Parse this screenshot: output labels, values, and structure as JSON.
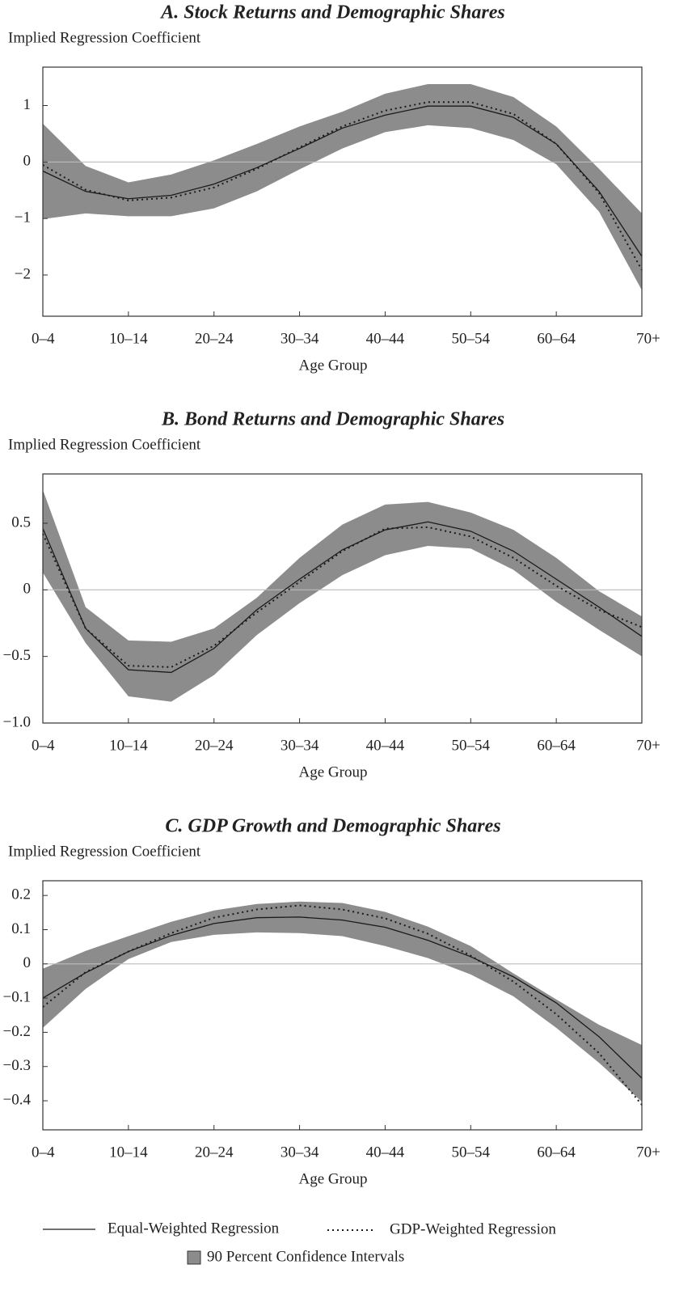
{
  "chart_data": [
    {
      "type": "line",
      "title": "A. Stock Returns and Demographic Shares",
      "y_label": "Implied Regression Coefficient",
      "x_label": "Age Group",
      "categories": [
        "0–4",
        null,
        "10–14",
        null,
        "20–24",
        null,
        "30–34",
        null,
        "40–44",
        null,
        "50–54",
        null,
        "60–64",
        null,
        "70+"
      ],
      "series": [
        {
          "values": [
            -0.16,
            -0.52,
            -0.65,
            -0.59,
            -0.39,
            -0.1,
            0.24,
            0.6,
            0.83,
            0.99,
            0.99,
            0.79,
            0.32,
            -0.52,
            -1.67
          ]
        },
        {
          "values": [
            -0.05,
            -0.49,
            -0.68,
            -0.63,
            -0.45,
            -0.12,
            0.26,
            0.63,
            0.91,
            1.06,
            1.06,
            0.85,
            0.32,
            -0.55,
            -1.91
          ]
        }
      ],
      "band": {
        "upper": [
          0.68,
          -0.07,
          -0.36,
          -0.22,
          0.03,
          0.32,
          0.63,
          0.89,
          1.21,
          1.38,
          1.38,
          1.15,
          0.63,
          -0.12,
          -0.91
        ],
        "lower": [
          -1.01,
          -0.91,
          -0.96,
          -0.96,
          -0.82,
          -0.52,
          -0.13,
          0.24,
          0.53,
          0.65,
          0.6,
          0.39,
          -0.04,
          -0.88,
          -2.27
        ]
      },
      "ylim": [
        -2.73,
        1.68
      ],
      "yticks": [
        {
          "value": -2,
          "label": "−2"
        },
        {
          "value": -1,
          "label": "−1"
        },
        0,
        1
      ],
      "hline": 0
    },
    {
      "type": "line",
      "title": "B. Bond Returns and Demographic Shares",
      "y_label": "Implied Regression Coefficient",
      "x_label": "Age Group",
      "categories": [
        "0–4",
        null,
        "10–14",
        null,
        "20–24",
        null,
        "30–34",
        null,
        "40–44",
        null,
        "50–54",
        null,
        "60–64",
        null,
        "70+"
      ],
      "series": [
        {
          "values": [
            0.46,
            -0.29,
            -0.6,
            -0.62,
            -0.44,
            -0.15,
            0.08,
            0.3,
            0.45,
            0.51,
            0.44,
            0.29,
            0.08,
            -0.13,
            -0.35
          ]
        },
        {
          "values": [
            0.42,
            -0.29,
            -0.57,
            -0.58,
            -0.42,
            -0.17,
            0.06,
            0.29,
            0.46,
            0.47,
            0.4,
            0.24,
            0.03,
            -0.15,
            -0.28
          ]
        }
      ],
      "band": {
        "upper": [
          0.75,
          -0.13,
          -0.38,
          -0.39,
          -0.29,
          -0.06,
          0.24,
          0.49,
          0.64,
          0.66,
          0.58,
          0.45,
          0.24,
          -0.01,
          -0.2
        ],
        "lower": [
          0.13,
          -0.4,
          -0.8,
          -0.84,
          -0.64,
          -0.34,
          -0.1,
          0.11,
          0.26,
          0.33,
          0.31,
          0.15,
          -0.09,
          -0.3,
          -0.5
        ]
      },
      "ylim": [
        -1.0,
        0.87
      ],
      "yticks": [
        {
          "value": -1.0,
          "label": "−1.0"
        },
        {
          "value": -0.5,
          "label": "−0.5"
        },
        0,
        0.5
      ],
      "hline": 0
    },
    {
      "type": "line",
      "title": "C. GDP Growth and Demographic Shares",
      "y_label": "Implied Regression Coefficient",
      "x_label": "Age Group",
      "categories": [
        "0–4",
        null,
        "10–14",
        null,
        "20–24",
        null,
        "30–34",
        null,
        "40–44",
        null,
        "50–54",
        null,
        "60–64",
        null,
        "70+"
      ],
      "series": [
        {
          "values": [
            -0.1,
            -0.026,
            0.036,
            0.083,
            0.118,
            0.135,
            0.137,
            0.128,
            0.107,
            0.069,
            0.021,
            -0.038,
            -0.114,
            -0.213,
            -0.334
          ]
        },
        {
          "values": [
            -0.126,
            -0.024,
            0.036,
            0.09,
            0.135,
            0.159,
            0.171,
            0.159,
            0.133,
            0.088,
            0.024,
            -0.052,
            -0.147,
            -0.261,
            -0.412
          ]
        }
      ],
      "band": {
        "upper": [
          -0.014,
          0.038,
          0.081,
          0.123,
          0.156,
          0.175,
          0.182,
          0.178,
          0.152,
          0.109,
          0.052,
          -0.028,
          -0.104,
          -0.178,
          -0.237
        ],
        "lower": [
          -0.187,
          -0.073,
          0.014,
          0.064,
          0.085,
          0.092,
          0.09,
          0.081,
          0.052,
          0.017,
          -0.031,
          -0.095,
          -0.187,
          -0.289,
          -0.403
        ]
      },
      "ylim": [
        -0.485,
        0.243
      ],
      "yticks": [
        {
          "value": -0.4,
          "label": "−0.4"
        },
        {
          "value": -0.3,
          "label": "−0.3"
        },
        {
          "value": -0.2,
          "label": "−0.2"
        },
        {
          "value": -0.1,
          "label": "−0.1"
        },
        0,
        0.1,
        0.2
      ],
      "hline": 0
    }
  ],
  "legend": [
    {
      "name": "Equal-Weighted Regression",
      "color": "#1a1a1a",
      "dash": "solid"
    },
    {
      "name": "GDP-Weighted Regression",
      "color": "#1a1a1a",
      "dash": "dotted"
    },
    {
      "name": "90 Percent Confidence Intervals",
      "color": "#8c8c8c"
    }
  ]
}
